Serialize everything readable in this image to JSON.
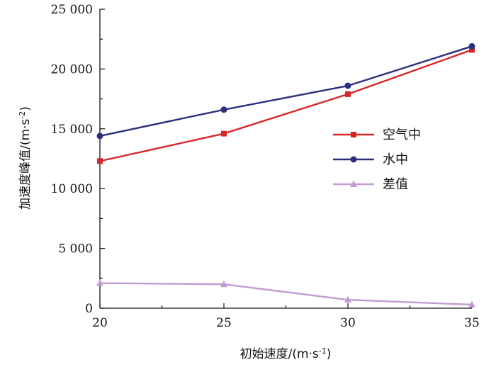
{
  "chart_data": {
    "type": "line",
    "x": [
      20,
      25,
      30,
      35
    ],
    "series": [
      {
        "name": "空气中",
        "values": [
          12300,
          14600,
          17900,
          21600
        ],
        "color": "#d62728",
        "marker": "square"
      },
      {
        "name": "水中",
        "values": [
          14400,
          16600,
          18600,
          21900
        ],
        "color": "#2b2f7e",
        "marker": "circle"
      },
      {
        "name": "差值",
        "values": [
          2100,
          2000,
          700,
          300
        ],
        "color": "#c39bd3",
        "marker": "triangle"
      }
    ],
    "xlabel_parts": [
      "初始速度/(m·s",
      "-1",
      ")"
    ],
    "ylabel_parts": [
      "加速度峰值/(m·s",
      "-2",
      ")"
    ],
    "xticks": [
      "20",
      "25",
      "30",
      "35"
    ],
    "yticks": [
      "0",
      "5 000",
      "10 000",
      "15 000",
      "20 000",
      "25 000"
    ],
    "xlim": [
      20,
      35
    ],
    "ylim": [
      0,
      25000
    ],
    "legend_position": "right-middle",
    "grid": false
  }
}
